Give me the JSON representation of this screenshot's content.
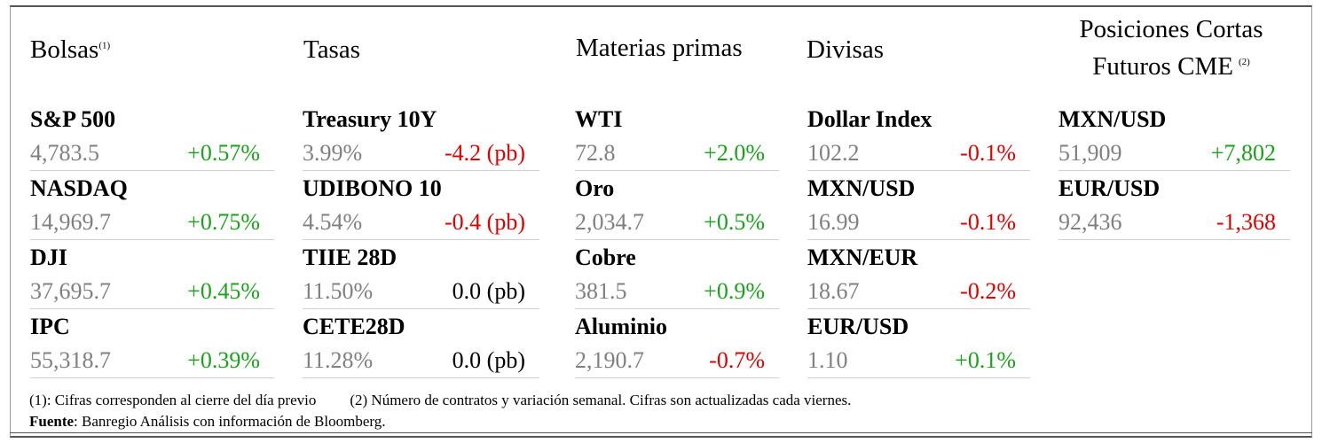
{
  "colors": {
    "positive": "#1aa31a",
    "negative": "#e00000",
    "neutral": "#000000",
    "value": "#808080"
  },
  "sections": {
    "bolsas": {
      "title": "Bolsas",
      "title_note": "(1)",
      "items": [
        {
          "name": "S&P 500",
          "value": "4,783.5",
          "change": "+0.57%",
          "dir": "positive"
        },
        {
          "name": "NASDAQ",
          "value": "14,969.7",
          "change": "+0.75%",
          "dir": "positive"
        },
        {
          "name": "DJI",
          "value": "37,695.7",
          "change": "+0.45%",
          "dir": "positive"
        },
        {
          "name": "IPC",
          "value": "55,318.7",
          "change": "+0.39%",
          "dir": "positive"
        }
      ]
    },
    "tasas": {
      "title": "Tasas",
      "items": [
        {
          "name": "Treasury 10Y",
          "value": "3.99%",
          "change": "-4.2 (pb)",
          "dir": "negative"
        },
        {
          "name": "UDIBONO 10",
          "value": "4.54%",
          "change": "-0.4 (pb)",
          "dir": "negative"
        },
        {
          "name": "TIIE 28D",
          "value": "11.50%",
          "change": "0.0 (pb)",
          "dir": "neutral"
        },
        {
          "name": "CETE28D",
          "value": "11.28%",
          "change": "0.0 (pb)",
          "dir": "neutral"
        }
      ]
    },
    "materias": {
      "title": "Materias primas",
      "items": [
        {
          "name": "WTI",
          "value": "72.8",
          "change": "+2.0%",
          "dir": "positive"
        },
        {
          "name": "Oro",
          "value": "2,034.7",
          "change": "+0.5%",
          "dir": "positive"
        },
        {
          "name": "Cobre",
          "value": "381.5",
          "change": "+0.9%",
          "dir": "positive"
        },
        {
          "name": "Aluminio",
          "value": "2,190.7",
          "change": "-0.7%",
          "dir": "negative"
        }
      ]
    },
    "divisas": {
      "title": "Divisas",
      "items": [
        {
          "name": "Dollar Index",
          "value": "102.2",
          "change": "-0.1%",
          "dir": "negative"
        },
        {
          "name": "MXN/USD",
          "value": "16.99",
          "change": "-0.1%",
          "dir": "negative"
        },
        {
          "name": "MXN/EUR",
          "value": "18.67",
          "change": "-0.2%",
          "dir": "negative"
        },
        {
          "name": "EUR/USD",
          "value": "1.10",
          "change": "+0.1%",
          "dir": "positive"
        }
      ]
    },
    "posiciones": {
      "title_line1": "Posiciones Cortas",
      "title_line2": "Futuros CME",
      "title_note": "(2)",
      "items": [
        {
          "name": "MXN/USD",
          "value": "51,909",
          "change": "+7,802",
          "dir": "positive"
        },
        {
          "name": "EUR/USD",
          "value": "92,436",
          "change": "-1,368",
          "dir": "negative"
        }
      ]
    }
  },
  "footnotes": {
    "note1": "(1): Cifras corresponden al cierre del día previo",
    "note2": "(2) Número de contratos y variación semanal. Cifras son actualizadas cada viernes.",
    "source_label": "Fuente",
    "source_text": ": Banregio Análisis con información de Bloomberg."
  }
}
